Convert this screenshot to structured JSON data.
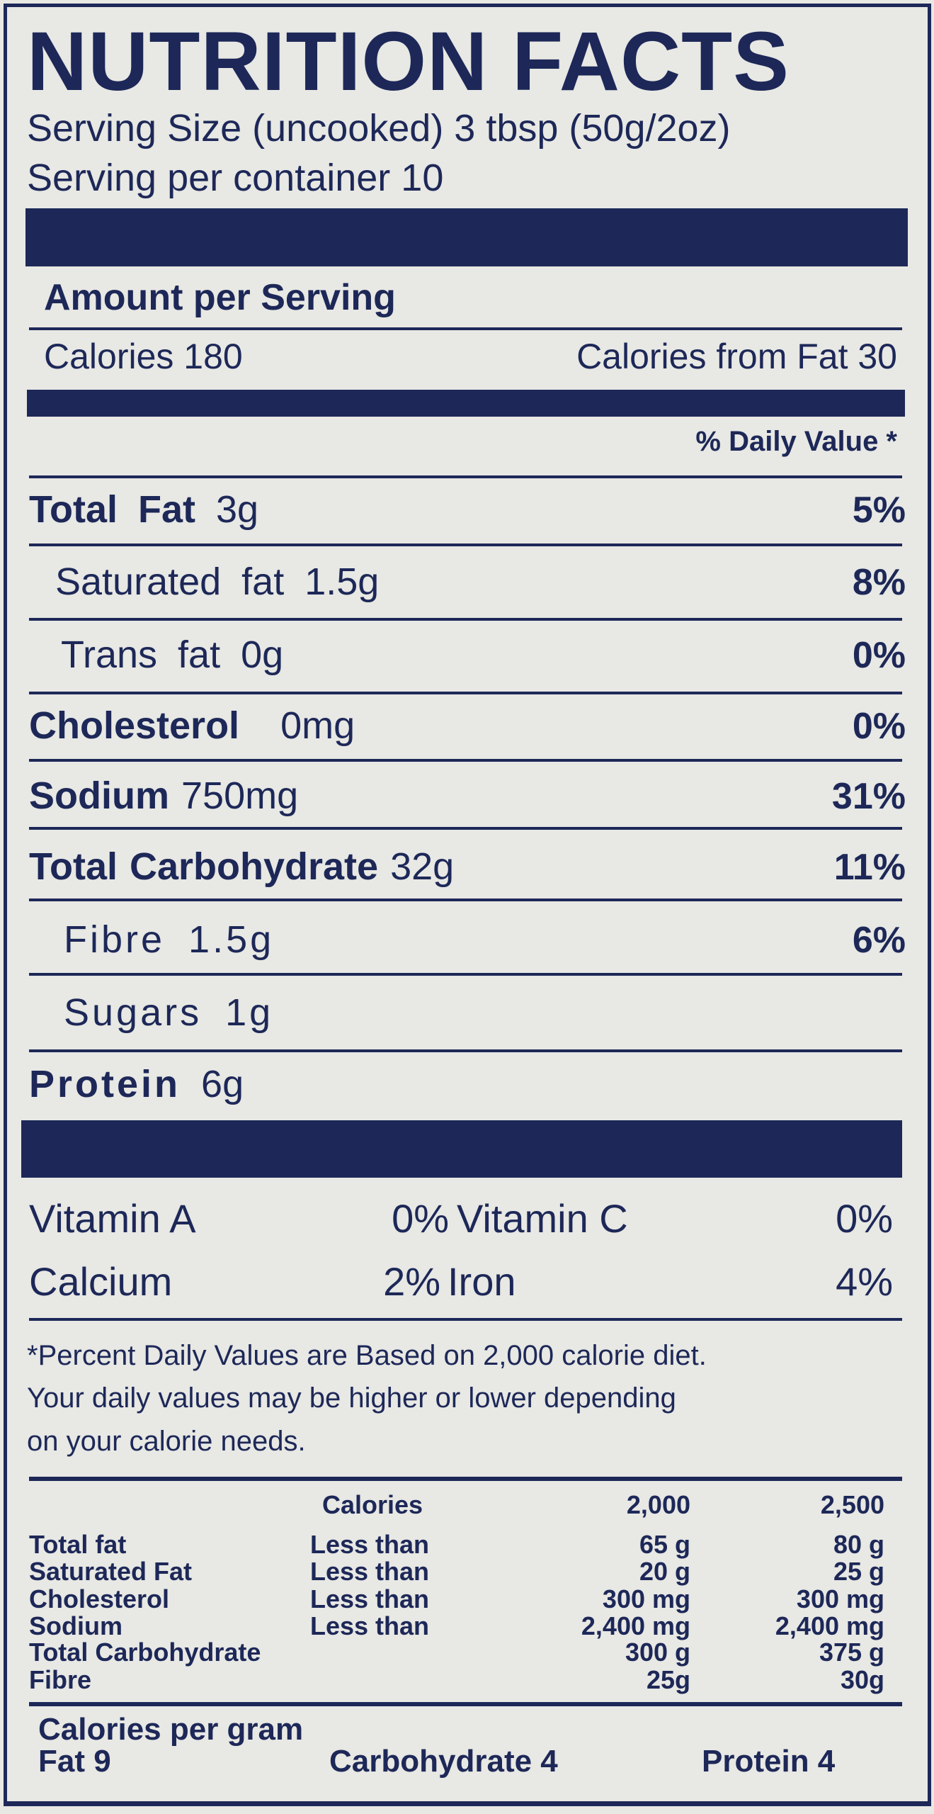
{
  "title": "NUTRITION FACTS",
  "serving_size": "Serving Size (uncooked) 3 tbsp (50g/2oz)",
  "servings_per_container": "Serving per container 10",
  "amount_per_serving": "Amount per Serving",
  "calories": "Calories 180",
  "calories_from_fat": "Calories from Fat 30",
  "daily_value_header": "% Daily Value *",
  "nutrients": [
    {
      "name": "Total  Fat",
      "amount": "3g",
      "dv": "5%"
    },
    {
      "name": "Saturated  fat",
      "amount": "1.5g",
      "dv": "8%"
    },
    {
      "name": "Trans  fat",
      "amount": "0g",
      "dv": "0%"
    },
    {
      "name": "Cholesterol",
      "amount": "0mg",
      "dv": "0%"
    },
    {
      "name": "Sodium",
      "amount": "750mg",
      "dv": "31%"
    },
    {
      "name": "Total  Carbohydrate",
      "amount": "32g",
      "dv": "11%"
    },
    {
      "name": "Fibre",
      "amount": "1.5g",
      "dv": "6%"
    },
    {
      "name": "Sugars",
      "amount": "1g"
    },
    {
      "name": "Protein",
      "amount": "6g"
    }
  ],
  "vitamins": [
    {
      "name": "Vitamin A",
      "dv": "0%"
    },
    {
      "name": "Vitamin C",
      "dv": "0%"
    },
    {
      "name": "Calcium",
      "dv": "2%"
    },
    {
      "name": "Iron",
      "dv": "4%"
    }
  ],
  "footnote": [
    "*Percent Daily Values are Based on 2,000 calorie diet.",
    "Your daily values may be higher or lower depending",
    "on your calorie needs."
  ],
  "reference_table": {
    "header": {
      "label": "Calories",
      "col1": "2,000",
      "col2": "2,500"
    },
    "rows": [
      {
        "name": "Total fat",
        "qualifier": "Less than",
        "col1": "65 g",
        "col2": "80 g"
      },
      {
        "name": "Saturated Fat",
        "qualifier": "Less than",
        "col1": "20 g",
        "col2": "25 g"
      },
      {
        "name": "Cholesterol",
        "qualifier": "Less than",
        "col1": "300 mg",
        "col2": "300 mg"
      },
      {
        "name": "Sodium",
        "qualifier": "Less than",
        "col1": "2,400 mg",
        "col2": "2,400 mg"
      },
      {
        "name": "Total Carbohydrate",
        "qualifier": "",
        "col1": "300 g",
        "col2": "375 g"
      },
      {
        "name": "Fibre",
        "qualifier": "",
        "col1": "25g",
        "col2": "30g"
      }
    ]
  },
  "calories_per_gram": {
    "heading": "Calories per gram",
    "fat": "Fat 9",
    "carbohydrate": "Carbohydrate 4",
    "protein": "Protein 4"
  },
  "colors": {
    "ink": "#1d2858",
    "background": "#e8e8e4"
  }
}
